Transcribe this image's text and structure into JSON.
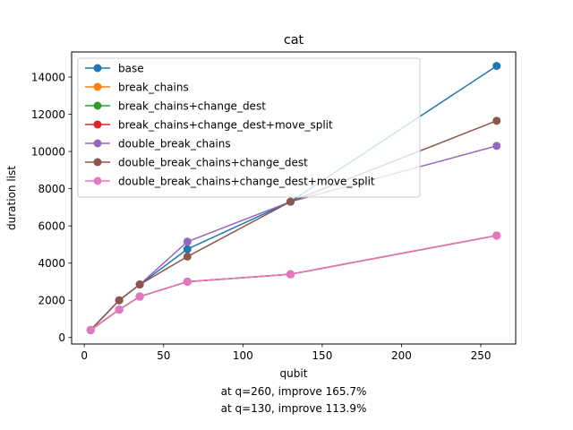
{
  "chart_data": {
    "type": "line",
    "title": "cat",
    "xlabel": "qubit",
    "ylabel": "duration list",
    "xlim": [
      -8,
      272
    ],
    "ylim": [
      -350,
      15350
    ],
    "xticks": [
      0,
      50,
      100,
      150,
      200,
      250
    ],
    "yticks": [
      0,
      2000,
      4000,
      6000,
      8000,
      10000,
      12000,
      14000
    ],
    "grid": false,
    "legend_position": "top-left",
    "annotations": [
      "at q=260, improve 165.7%",
      "at q=130, improve 113.9%"
    ],
    "x": [
      4,
      22,
      35,
      65,
      130,
      260
    ],
    "series": [
      {
        "name": "base",
        "color": "#1f77b4",
        "values": [
          400,
          2000,
          2850,
          4750,
          7300,
          14600
        ]
      },
      {
        "name": "break_chains",
        "color": "#ff7f0e",
        "values": [
          400,
          1500,
          2200,
          3000,
          3400,
          5480
        ]
      },
      {
        "name": "break_chains+change_dest",
        "color": "#2ca02c",
        "values": [
          400,
          1500,
          2200,
          3000,
          3400,
          5480
        ]
      },
      {
        "name": "break_chains+change_dest+move_split",
        "color": "#d62728",
        "values": [
          400,
          1500,
          2200,
          3000,
          3400,
          5480
        ]
      },
      {
        "name": "double_break_chains",
        "color": "#9467bd",
        "values": [
          400,
          2000,
          2850,
          5150,
          7300,
          10300
        ]
      },
      {
        "name": "double_break_chains+change_dest",
        "color": "#8c564b",
        "values": [
          400,
          2000,
          2850,
          4350,
          7300,
          11650
        ]
      },
      {
        "name": "double_break_chains+change_dest+move_split",
        "color": "#e377c2",
        "values": [
          400,
          1500,
          2200,
          3000,
          3400,
          5480
        ]
      }
    ]
  }
}
